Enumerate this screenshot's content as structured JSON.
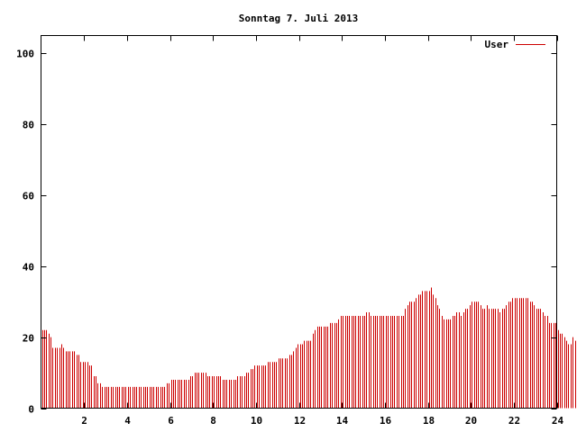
{
  "chart_data": {
    "type": "bar",
    "title": "Sonntag 7. Juli 2013",
    "xlabel": "",
    "ylabel": "",
    "xlim": [
      0,
      24
    ],
    "ylim": [
      0,
      105
    ],
    "x_ticks": [
      2,
      4,
      6,
      8,
      10,
      12,
      14,
      16,
      18,
      20,
      22,
      24
    ],
    "y_ticks": [
      0,
      20,
      40,
      60,
      80,
      100
    ],
    "grid": false,
    "legend_position": "top-right",
    "bar_color": "#cc0000",
    "series": [
      {
        "name": "User",
        "interval_hours": 0.1,
        "values": [
          22,
          22,
          22,
          21,
          20,
          17,
          17,
          17,
          17,
          18,
          17,
          16,
          16,
          16,
          16,
          16,
          15,
          15,
          13,
          13,
          13,
          13,
          12,
          12,
          9,
          9,
          7,
          7,
          6,
          6,
          6,
          6,
          6,
          6,
          6,
          6,
          6,
          6,
          6,
          6,
          6,
          6,
          6,
          6,
          6,
          6,
          6,
          6,
          6,
          6,
          6,
          6,
          6,
          6,
          6,
          6,
          6,
          6,
          7,
          7,
          8,
          8,
          8,
          8,
          8,
          8,
          8,
          8,
          8,
          9,
          9,
          10,
          10,
          10,
          10,
          10,
          10,
          9,
          9,
          9,
          9,
          9,
          9,
          9,
          8,
          8,
          8,
          8,
          8,
          8,
          8,
          9,
          9,
          9,
          9,
          10,
          10,
          11,
          11,
          12,
          12,
          12,
          12,
          12,
          12,
          13,
          13,
          13,
          13,
          13,
          14,
          14,
          14,
          14,
          14,
          15,
          15,
          16,
          17,
          18,
          18,
          18,
          19,
          19,
          19,
          19,
          21,
          22,
          23,
          23,
          23,
          23,
          23,
          23,
          24,
          24,
          24,
          24,
          25,
          26,
          26,
          26,
          26,
          26,
          26,
          26,
          26,
          26,
          26,
          26,
          26,
          27,
          27,
          26,
          26,
          26,
          26,
          26,
          26,
          26,
          26,
          26,
          26,
          26,
          26,
          26,
          26,
          26,
          26,
          28,
          29,
          30,
          30,
          30,
          31,
          32,
          32,
          33,
          33,
          33,
          33,
          34,
          32,
          31,
          29,
          28,
          26,
          25,
          25,
          25,
          25,
          26,
          26,
          27,
          27,
          26,
          27,
          28,
          28,
          29,
          30,
          30,
          30,
          30,
          29,
          28,
          28,
          29,
          28,
          28,
          28,
          28,
          28,
          27,
          28,
          28,
          29,
          30,
          30,
          31,
          31,
          31,
          31,
          31,
          31,
          31,
          31,
          30,
          30,
          29,
          28,
          28,
          28,
          27,
          26,
          26,
          24,
          24,
          24,
          24,
          22,
          21,
          21,
          20,
          19,
          18,
          18,
          20,
          19,
          18,
          18
        ]
      }
    ]
  }
}
